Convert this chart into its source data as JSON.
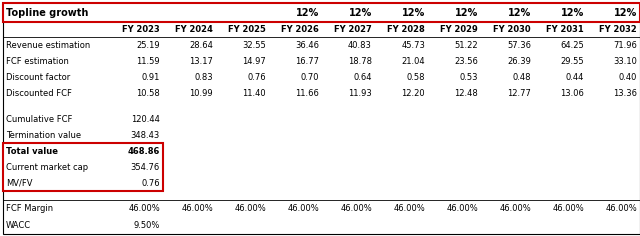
{
  "title": "Topline growth",
  "growth_cols": [
    4,
    5,
    6,
    7,
    8,
    9,
    10
  ],
  "header_row": [
    "FY 2023",
    "FY 2024",
    "FY 2025",
    "FY 2026",
    "FY 2027",
    "FY 2028",
    "FY 2029",
    "FY 2030",
    "FY 2031",
    "FY 2032"
  ],
  "revenue": [
    "Revenue estimation",
    "25.19",
    "28.64",
    "32.55",
    "36.46",
    "40.83",
    "45.73",
    "51.22",
    "57.36",
    "64.25",
    "71.96"
  ],
  "fcf_est": [
    "FCF estimation",
    "11.59",
    "13.17",
    "14.97",
    "16.77",
    "18.78",
    "21.04",
    "23.56",
    "26.39",
    "29.55",
    "33.10"
  ],
  "discount_factor": [
    "Discount factor",
    "0.91",
    "0.83",
    "0.76",
    "0.70",
    "0.64",
    "0.58",
    "0.53",
    "0.48",
    "0.44",
    "0.40"
  ],
  "discounted_fcf": [
    "Discounted FCF",
    "10.58",
    "10.99",
    "11.40",
    "11.66",
    "11.93",
    "12.20",
    "12.48",
    "12.77",
    "13.06",
    "13.36"
  ],
  "cumulative_fcf": [
    "Cumulative FCF",
    "120.44"
  ],
  "termination_value": [
    "Termination value",
    "348.43"
  ],
  "total_value": [
    "Total value",
    "468.86"
  ],
  "current_market_cap": [
    "Current market cap",
    "354.76"
  ],
  "mv_fv": [
    "MV/FV",
    "0.76"
  ],
  "fcf_margin": [
    "FCF Margin",
    "46.00%",
    "46.00%",
    "46.00%",
    "46.00%",
    "46.00%",
    "46.00%",
    "46.00%",
    "46.00%",
    "46.00%",
    "46.00%"
  ],
  "wacc": [
    "WACC",
    "9.50%"
  ],
  "red": "#cc0000",
  "black": "#000000",
  "white": "#ffffff",
  "fig_w": 6.4,
  "fig_h": 2.36,
  "dpi": 100
}
